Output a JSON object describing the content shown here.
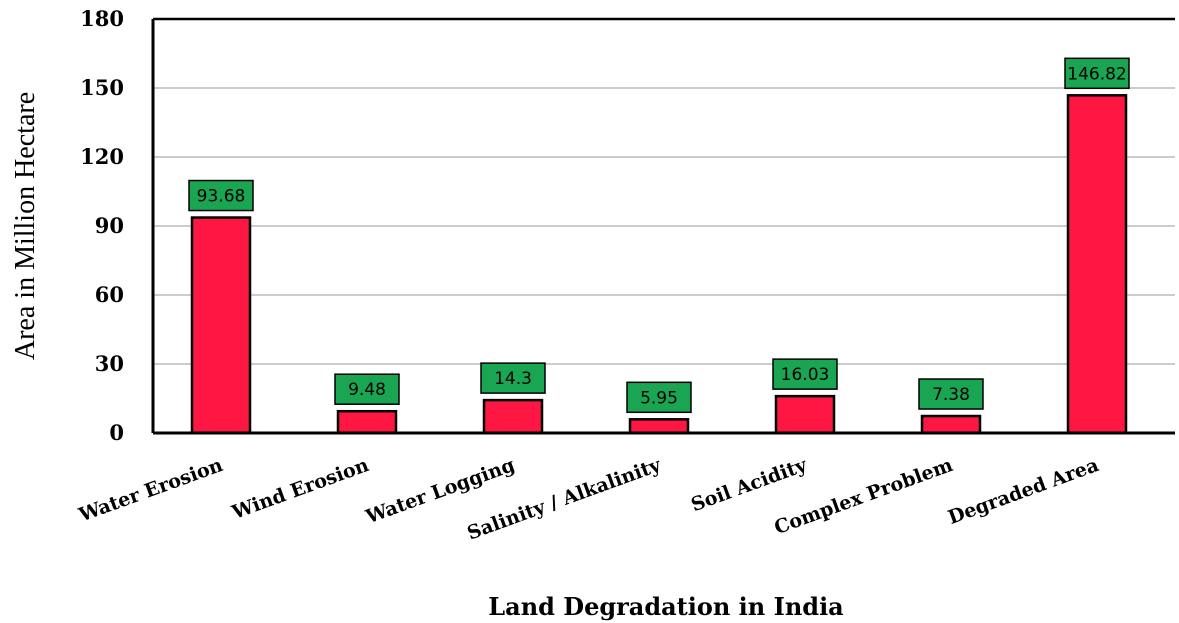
{
  "chart_data": {
    "type": "bar",
    "categories": [
      "Water Erosion",
      "Wind Erosion",
      "Water Logging",
      "Salinity / Alkalinity",
      "Soil Acidity",
      "Complex Problem",
      "Degraded Area"
    ],
    "values": [
      93.68,
      9.48,
      14.3,
      5.95,
      16.03,
      7.38,
      146.82
    ],
    "data_labels": [
      "93.68",
      "9.48",
      "14.3",
      "5.95",
      "16.03",
      "7.38",
      "146.82"
    ],
    "xlabel": "Land Degradation in India",
    "ylabel": "Area in Million Hectare",
    "ylim": [
      0,
      180
    ],
    "yticks": [
      0,
      30,
      60,
      90,
      120,
      150,
      180
    ],
    "ytick_labels": [
      "0",
      "30",
      "60",
      "90",
      "120",
      "150",
      "180"
    ],
    "grid": "horizontal",
    "bar_color": "#ff1744",
    "label_box_color": "#1aa552"
  }
}
